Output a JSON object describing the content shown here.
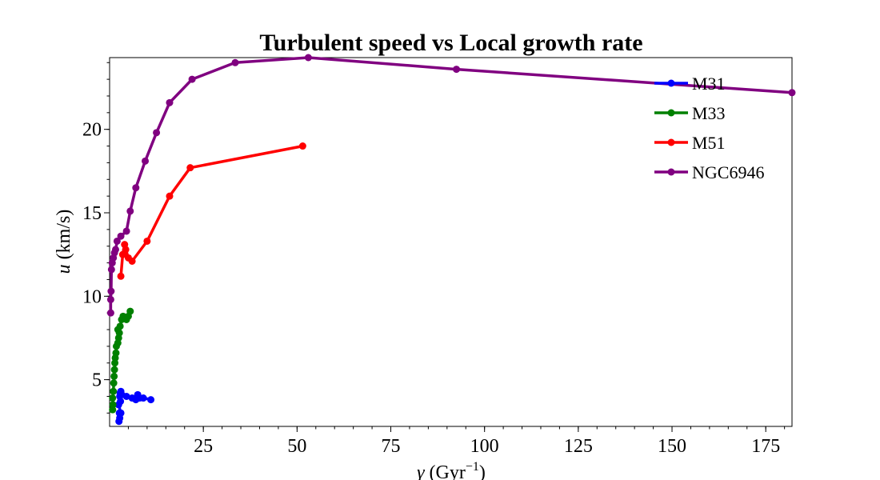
{
  "chart_data": {
    "type": "line",
    "title": "Turbulent speed vs Local growth rate",
    "xlabel_var": "γ",
    "xlabel_unit": "(Gyr",
    "xlabel_sup": "−1",
    "xlabel_close": ")",
    "ylabel_var": "u",
    "ylabel_unit": " (km/s)",
    "xlim": [
      0,
      182
    ],
    "ylim": [
      2.2,
      24.3
    ],
    "x_ticks": [
      25,
      50,
      75,
      100,
      125,
      150,
      175
    ],
    "x_tick_labels": [
      "25",
      "50",
      "75",
      "100",
      "125",
      "150",
      "175"
    ],
    "x_minor_step": 5,
    "y_ticks": [
      5,
      10,
      15,
      20
    ],
    "y_tick_labels": [
      "5",
      "10",
      "15",
      "20"
    ],
    "y_minor_step": 1,
    "grid": false,
    "legend_position": "top-right",
    "series": [
      {
        "name": "M31",
        "color": "#0000ff",
        "points": [
          [
            2.5,
            2.5
          ],
          [
            2.7,
            2.7
          ],
          [
            2.6,
            3.0
          ],
          [
            3.0,
            3.0
          ],
          [
            2.4,
            3.5
          ],
          [
            2.9,
            3.7
          ],
          [
            2.7,
            4.0
          ],
          [
            3.2,
            4.1
          ],
          [
            2.8,
            4.2
          ],
          [
            3.0,
            4.3
          ],
          [
            4.5,
            4.0
          ],
          [
            6.0,
            3.9
          ],
          [
            7.0,
            3.8
          ],
          [
            8.0,
            3.9
          ],
          [
            7.5,
            4.1
          ],
          [
            9.0,
            3.9
          ],
          [
            11.0,
            3.8
          ]
        ]
      },
      {
        "name": "M33",
        "color": "#008000",
        "points": [
          [
            0.8,
            3.2
          ],
          [
            0.9,
            3.5
          ],
          [
            0.8,
            3.9
          ],
          [
            1.0,
            4.3
          ],
          [
            1.1,
            4.8
          ],
          [
            1.2,
            5.2
          ],
          [
            1.3,
            5.6
          ],
          [
            1.4,
            6.0
          ],
          [
            1.5,
            6.3
          ],
          [
            1.7,
            6.6
          ],
          [
            1.8,
            7.0
          ],
          [
            2.2,
            7.2
          ],
          [
            2.4,
            7.5
          ],
          [
            2.6,
            7.8
          ],
          [
            2.2,
            8.0
          ],
          [
            2.8,
            8.2
          ],
          [
            3.2,
            8.6
          ],
          [
            3.6,
            8.8
          ],
          [
            4.0,
            8.7
          ],
          [
            4.5,
            8.6
          ],
          [
            5.0,
            8.8
          ],
          [
            5.5,
            9.1
          ]
        ]
      },
      {
        "name": "M51",
        "color": "#ff0000",
        "points": [
          [
            3.0,
            11.2
          ],
          [
            3.5,
            12.5
          ],
          [
            4.0,
            13.1
          ],
          [
            4.3,
            12.8
          ],
          [
            5.0,
            12.3
          ],
          [
            6.0,
            12.1
          ],
          [
            10.0,
            13.3
          ],
          [
            16.0,
            16.0
          ],
          [
            21.5,
            17.7
          ],
          [
            51.5,
            19.0
          ]
        ]
      },
      {
        "name": "NGC6946",
        "color": "#800080",
        "points": [
          [
            0.3,
            9.0
          ],
          [
            0.3,
            9.8
          ],
          [
            0.4,
            10.3
          ],
          [
            0.5,
            11.6
          ],
          [
            0.7,
            12.0
          ],
          [
            1.0,
            12.3
          ],
          [
            1.3,
            12.6
          ],
          [
            1.6,
            12.8
          ],
          [
            2.0,
            13.3
          ],
          [
            3.0,
            13.6
          ],
          [
            4.5,
            13.9
          ],
          [
            5.5,
            15.1
          ],
          [
            7.0,
            16.5
          ],
          [
            9.5,
            18.1
          ],
          [
            12.5,
            19.8
          ],
          [
            16.0,
            21.6
          ],
          [
            22.0,
            23.0
          ],
          [
            33.5,
            24.0
          ],
          [
            53.0,
            24.3
          ],
          [
            92.5,
            23.6
          ],
          [
            182.0,
            22.2
          ]
        ]
      }
    ]
  }
}
